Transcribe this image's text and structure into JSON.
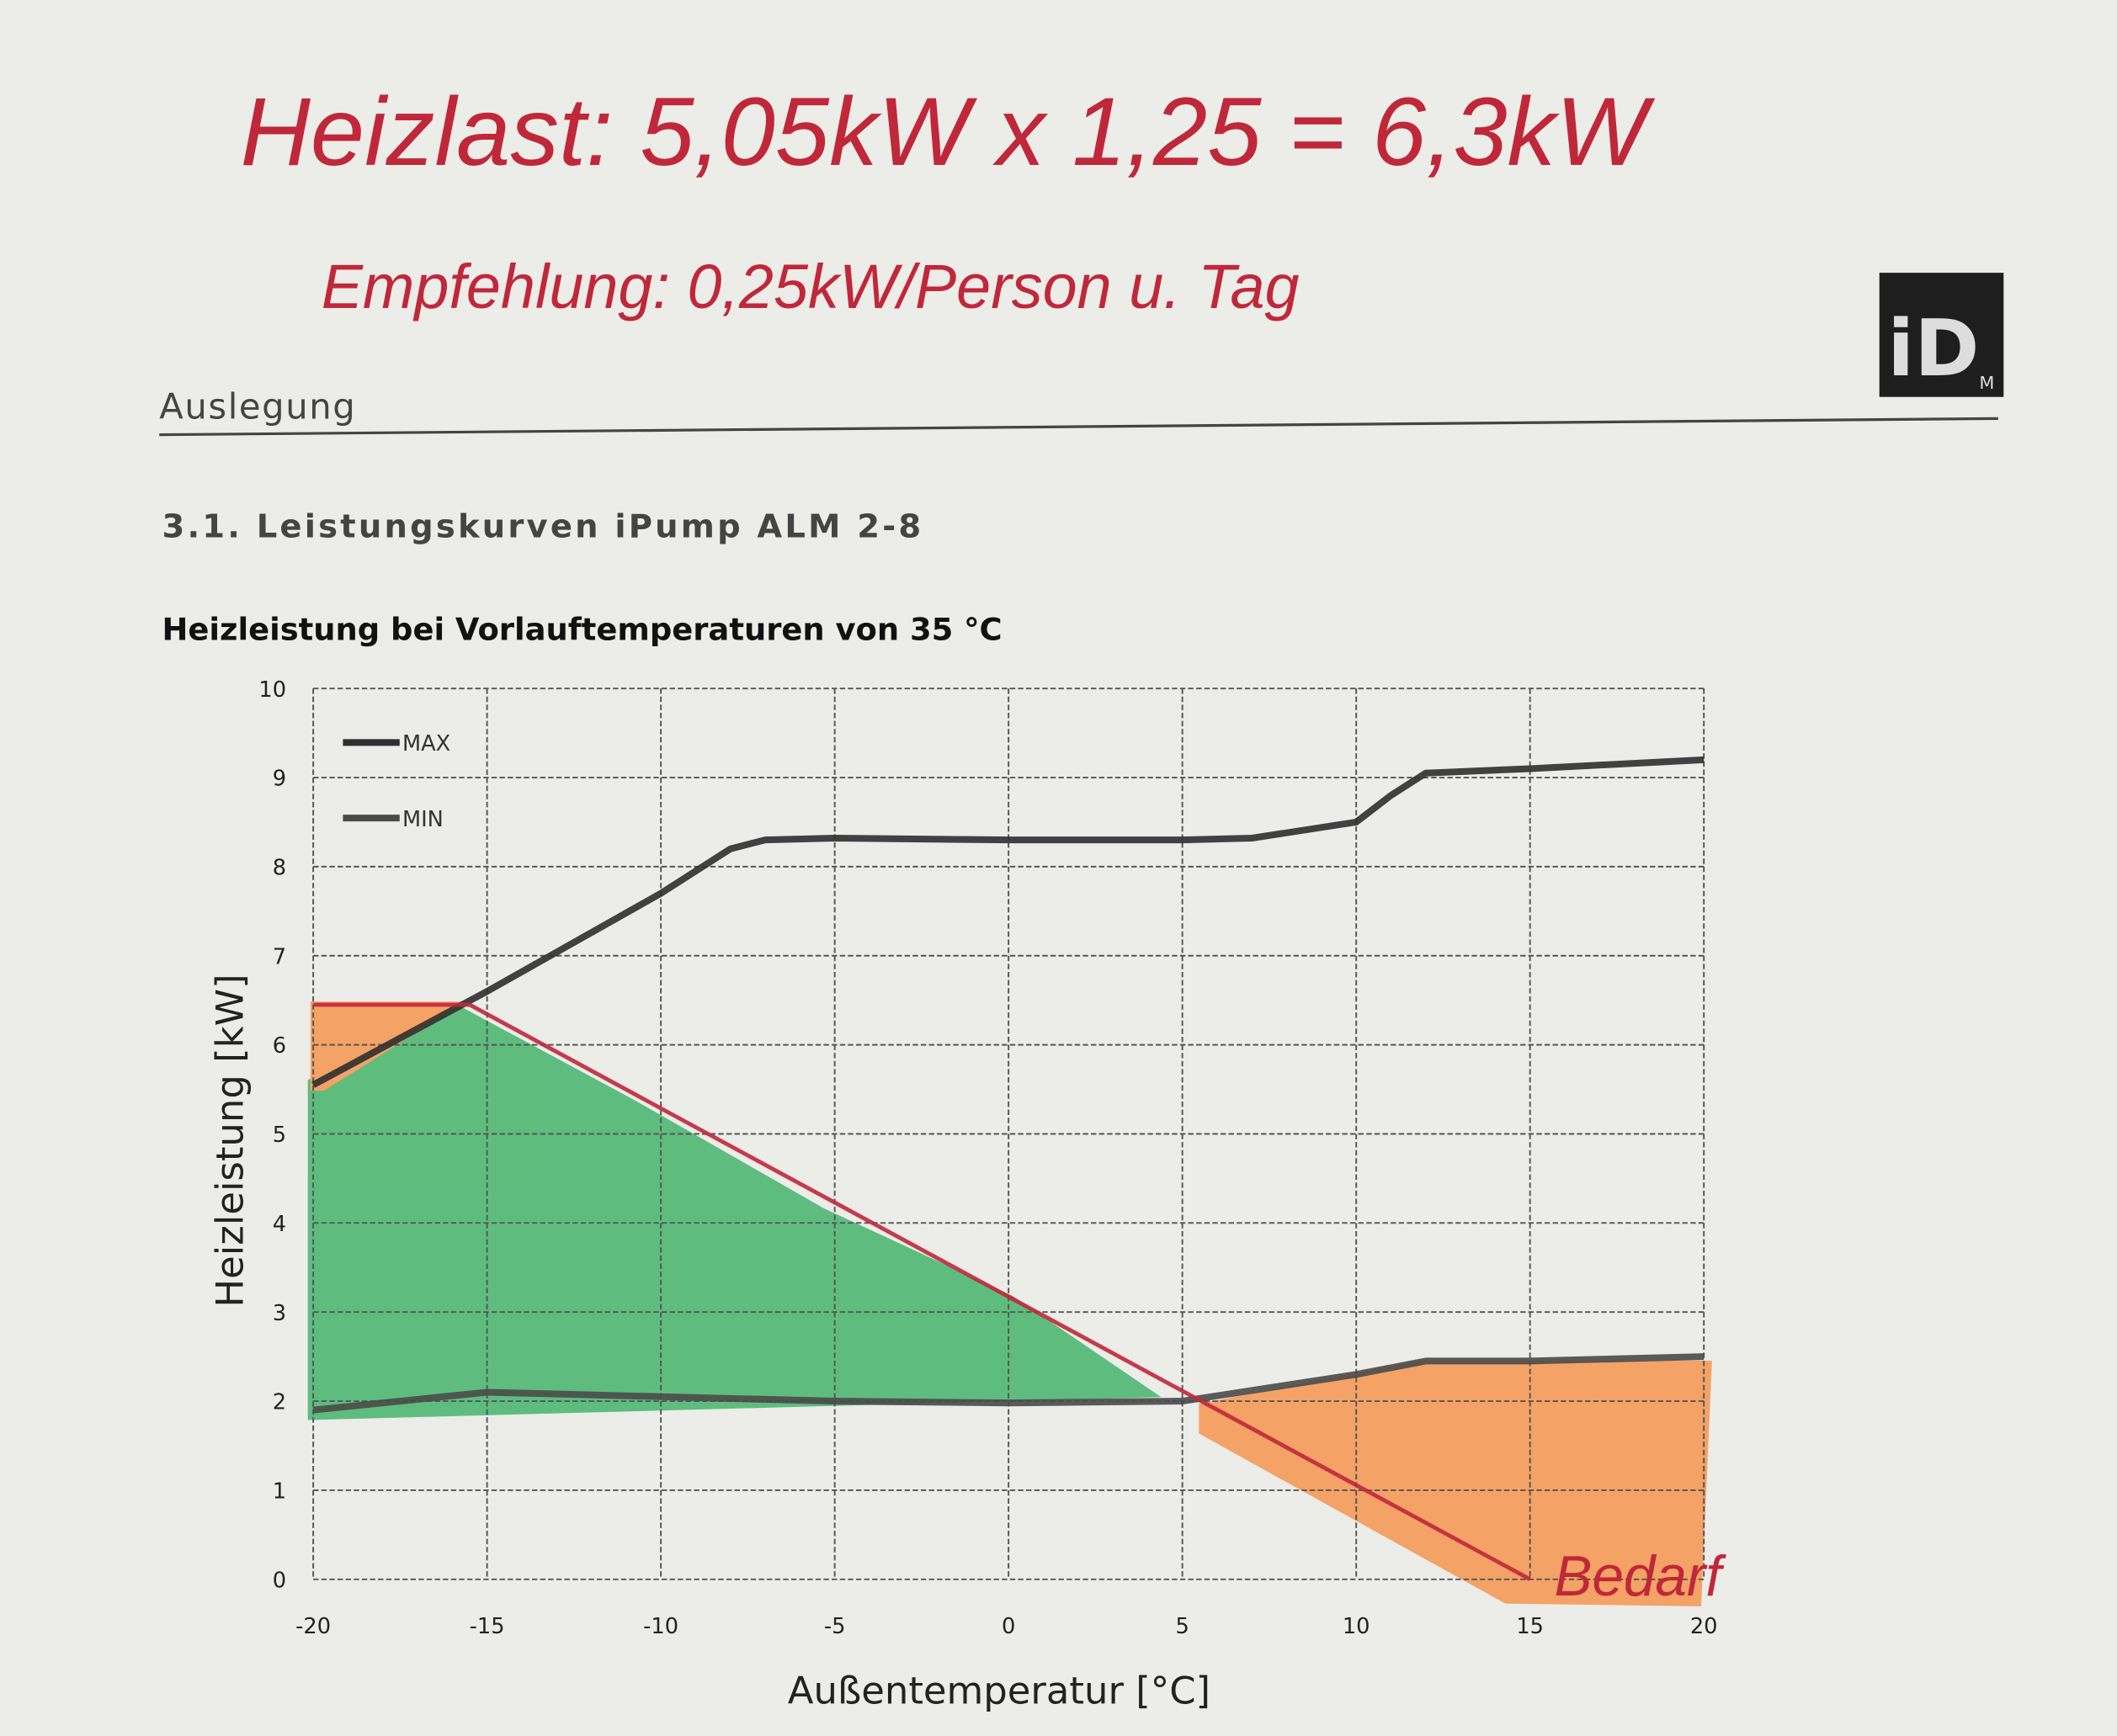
{
  "document": {
    "notes": [
      "Heizlast: 5,05kW x 1,25 = 6,3kW",
      "Empfehlung: 0,25kW/Person u. Tag"
    ],
    "logo": "iD",
    "logo_sub": "M",
    "header": "Auslegung",
    "section": "3.1. Leistungskurven iPump ALM 2-8"
  },
  "chart_data": {
    "type": "line",
    "title": "Heizleistung bei Vorlauftemperaturen von 35 °C",
    "x_label": "Außentemperatur [°C]",
    "y_label": "Heizleistung [kW]",
    "xlim": [
      -20,
      20
    ],
    "xticks": [
      -20,
      -15,
      -10,
      -5,
      0,
      5,
      10,
      15,
      20
    ],
    "ylim": [
      0,
      10
    ],
    "yticks": [
      0,
      1,
      2,
      3,
      4,
      5,
      6,
      7,
      8,
      9,
      10
    ],
    "grid": true,
    "legend": "upper left",
    "series": [
      {
        "name": "MAX",
        "color": "#2f2f2f",
        "x": [
          -20,
          -15,
          -10,
          -8,
          -7,
          -5,
          0,
          5,
          7,
          10,
          11,
          12,
          15,
          20
        ],
        "values": [
          5.55,
          6.6,
          7.7,
          8.2,
          8.3,
          8.32,
          8.3,
          8.3,
          8.32,
          8.5,
          8.8,
          9.05,
          9.1,
          9.2
        ]
      },
      {
        "name": "MIN",
        "color": "#4a4a4a",
        "x": [
          -20,
          -15,
          -10,
          -5,
          0,
          5,
          10,
          12,
          15,
          20
        ],
        "values": [
          1.9,
          2.1,
          2.05,
          2.0,
          1.98,
          2.0,
          2.3,
          2.45,
          2.45,
          2.5
        ]
      },
      {
        "name": "Bedarf",
        "color": "#c0283a",
        "x": [
          -20,
          -15.5,
          15
        ],
        "values": [
          6.45,
          6.45,
          0
        ]
      }
    ]
  }
}
